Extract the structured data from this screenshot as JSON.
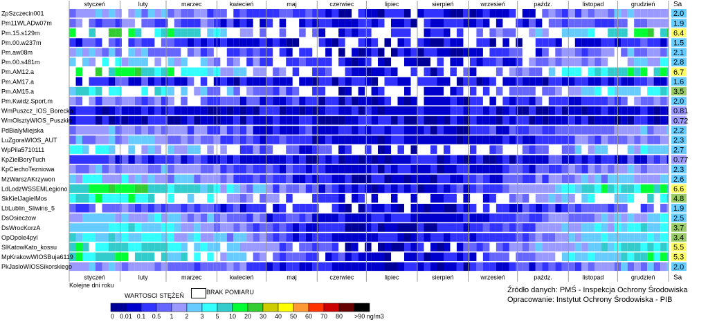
{
  "chart_data": {
    "type": "heatmap",
    "months": [
      "styczeń",
      "luty",
      "marzec",
      "kwiecień",
      "maj",
      "czerwiec",
      "lipiec",
      "sierpień",
      "wrzesień",
      "paźdz.",
      "listopad",
      "grudzień"
    ],
    "value_column_header": "Sa",
    "stations": [
      "ZpSzczecin001",
      "Pm11WLADw07m",
      "Pm.15.s129m",
      "Pm.00.w237m",
      "Pm.aw08m",
      "Pm.00.s481m",
      "Pm.AM12.a",
      "Pm.AM17.a",
      "Pm.AM15.a",
      "Pm.Kwidz.Sport.m",
      "WmPuszcz_IOS_Borecka",
      "WmOlsztyWIOS_Puszkin",
      "PdBialyMiejska",
      "LuZgoraWIOS_AUT",
      "WpPila5710111",
      "KpZielBoryTuch",
      "KpCiechoTezniowa",
      "MzWarszAKrzywon",
      "LdLodzWSSEMLegiono",
      "SkKielJagielMos",
      "LbLublin_Sliwins_5",
      "DsOsieczow",
      "DsWrocKorzA",
      "OpOpole4pyl",
      "SlKatowKato_kossu",
      "MpKrakowWIOSBuja6119",
      "PkJasloWIOSSikorskiego"
    ],
    "annual_values": [
      "2.0",
      "1.9",
      "6.4",
      "1.5",
      "2.1",
      "2.8",
      "6.7",
      "1.6",
      "3.5",
      "2.0",
      "0.81",
      "0.72",
      "2.2",
      "2.3",
      "2.7",
      "0.77",
      "2.3",
      "2.6",
      "6.6",
      "4.8",
      "1.9",
      "2.5",
      "3.7",
      "3.4",
      "5.5",
      "5.3",
      "2.0"
    ],
    "annual_value_colors": [
      "#66ccff",
      "#66ccff",
      "#ffff66",
      "#66ccff",
      "#66ccff",
      "#66ccff",
      "#ffff66",
      "#66ccff",
      "#99cc66",
      "#66ccff",
      "#9999ff",
      "#9999ff",
      "#66ccff",
      "#66ccff",
      "#66ccff",
      "#9999ff",
      "#66ccff",
      "#66ccff",
      "#ffff66",
      "#99cc66",
      "#66ccff",
      "#66ccff",
      "#99cc66",
      "#99cc66",
      "#ffff66",
      "#ffff66",
      "#66ccff"
    ],
    "winter_level": [
      4,
      3,
      8,
      2,
      4,
      5,
      8,
      2,
      6,
      3,
      1,
      1,
      4,
      4,
      5,
      2,
      4,
      5,
      8,
      7,
      3,
      5,
      6,
      6,
      7,
      7,
      4
    ],
    "gap_level": [
      1,
      1,
      3,
      2,
      2,
      2,
      3,
      1,
      3,
      1,
      0,
      0,
      0,
      0,
      3,
      0,
      0,
      0,
      0,
      3,
      1,
      0,
      0,
      0,
      1,
      1,
      0
    ],
    "legend": {
      "title": "WARTOSCI STĘŻEŃ",
      "ticks": [
        "0",
        "0.01",
        "0.1",
        "0.5",
        "1",
        "2",
        "3",
        "5",
        "10",
        "20",
        "30",
        "40",
        "50",
        "60",
        "70",
        "80",
        ">90 ng/m3"
      ],
      "colors": [
        "#000099",
        "#0000cc",
        "#3333ff",
        "#6666ff",
        "#9999ff",
        "#66ccff",
        "#33ffff",
        "#33cccc",
        "#00ff33",
        "#33cc33",
        "#cccc00",
        "#ffff00",
        "#ff9933",
        "#ff3300",
        "#cc0000",
        "#660000",
        "#000000"
      ],
      "missing_label": "BRAK POMIARU"
    },
    "x_caption": "Kolejne dni roku"
  },
  "source": {
    "line1": "Źródło danych: PMŚ - Inspekcja Ochrony Środowiska",
    "line2": "Opracowanie: Instytut Ochrony Środowiska - PIB"
  }
}
